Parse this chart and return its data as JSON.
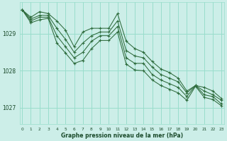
{
  "bg_color": "#cceee8",
  "grid_color": "#99ddcc",
  "line_color": "#2d6b3c",
  "marker_color": "#2d6b3c",
  "text_color": "#1a4a2a",
  "xlabel": "Graphe pression niveau de la mer (hPa)",
  "xticks": [
    0,
    1,
    2,
    3,
    4,
    5,
    6,
    7,
    8,
    9,
    10,
    11,
    12,
    13,
    14,
    15,
    16,
    17,
    18,
    19,
    20,
    21,
    22,
    23
  ],
  "yticks": [
    1027,
    1028,
    1029
  ],
  "ylim": [
    1026.55,
    1029.85
  ],
  "xlim": [
    -0.3,
    23.3
  ],
  "series": [
    [
      1029.65,
      1029.45,
      1029.6,
      1029.55,
      1029.35,
      1029.1,
      1028.65,
      1029.05,
      1029.15,
      1029.15,
      1029.15,
      1029.55,
      1028.8,
      1028.6,
      1028.5,
      1028.25,
      1028.05,
      1027.95,
      1027.8,
      1027.45,
      1027.6,
      1027.55,
      1027.45,
      1027.25
    ],
    [
      1029.65,
      1029.4,
      1029.5,
      1029.5,
      1029.15,
      1028.85,
      1028.5,
      1028.75,
      1028.95,
      1029.05,
      1029.05,
      1029.35,
      1028.55,
      1028.4,
      1028.35,
      1028.1,
      1027.9,
      1027.8,
      1027.7,
      1027.4,
      1027.6,
      1027.45,
      1027.35,
      1027.2
    ],
    [
      1029.65,
      1029.35,
      1029.45,
      1029.45,
      1028.95,
      1028.65,
      1028.35,
      1028.5,
      1028.8,
      1028.95,
      1028.95,
      1029.2,
      1028.35,
      1028.2,
      1028.2,
      1027.9,
      1027.75,
      1027.65,
      1027.55,
      1027.3,
      1027.6,
      1027.35,
      1027.3,
      1027.1
    ],
    [
      1029.65,
      1029.3,
      1029.38,
      1029.42,
      1028.75,
      1028.48,
      1028.2,
      1028.28,
      1028.6,
      1028.82,
      1028.82,
      1029.05,
      1028.18,
      1028.02,
      1028.0,
      1027.75,
      1027.6,
      1027.5,
      1027.4,
      1027.2,
      1027.58,
      1027.28,
      1027.22,
      1027.05
    ]
  ]
}
